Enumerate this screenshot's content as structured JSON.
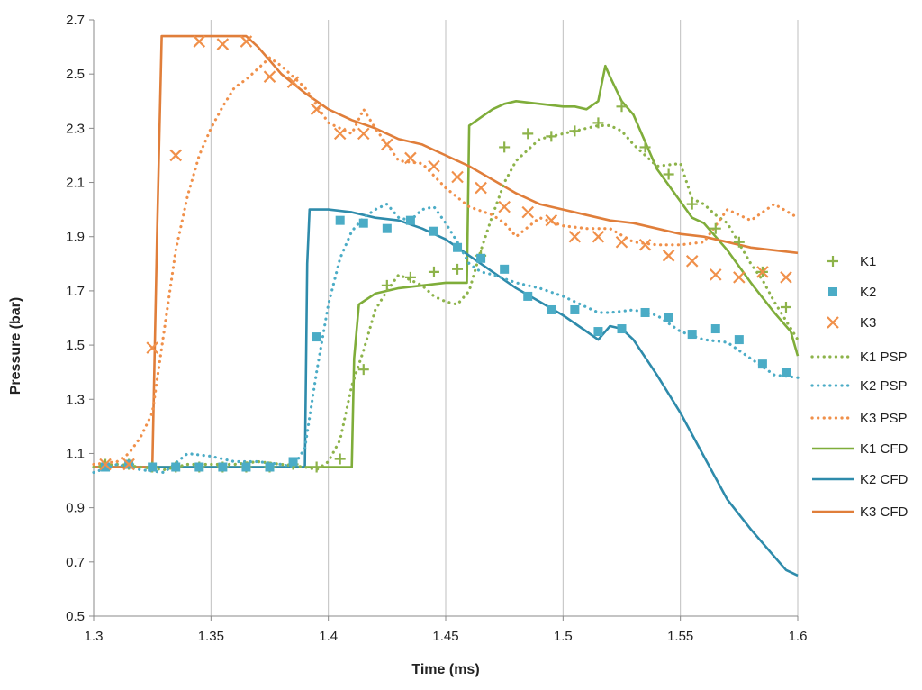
{
  "chart_data": {
    "type": "line",
    "xlabel": "Time (ms)",
    "ylabel": "Pressure (bar)",
    "xlim": [
      1.3,
      1.6
    ],
    "ylim": [
      0.5,
      2.7
    ],
    "x_ticks": [
      "1.3",
      "1.35",
      "1.4",
      "1.45",
      "1.5",
      "1.55",
      "1.6"
    ],
    "y_ticks": [
      "0.5",
      "0.7",
      "0.9",
      "1.1",
      "1.3",
      "1.5",
      "1.7",
      "1.9",
      "2.1",
      "2.3",
      "2.5",
      "2.7"
    ],
    "grid": "vertical",
    "legend_position": "right",
    "series": [
      {
        "name": "K1",
        "style": "marker",
        "marker": "plus",
        "color": "#8db34a",
        "x": [
          1.305,
          1.315,
          1.325,
          1.335,
          1.345,
          1.355,
          1.365,
          1.375,
          1.385,
          1.395,
          1.405,
          1.415,
          1.425,
          1.435,
          1.445,
          1.455,
          1.465,
          1.475,
          1.485,
          1.495,
          1.505,
          1.515,
          1.525,
          1.535,
          1.545,
          1.555,
          1.565,
          1.575,
          1.585,
          1.595
        ],
        "y": [
          1.06,
          1.06,
          1.05,
          1.05,
          1.05,
          1.05,
          1.05,
          1.05,
          1.06,
          1.05,
          1.08,
          1.41,
          1.72,
          1.75,
          1.77,
          1.78,
          1.83,
          2.23,
          2.28,
          2.27,
          2.29,
          2.32,
          2.38,
          2.23,
          2.13,
          2.02,
          1.93,
          1.88,
          1.77,
          1.64
        ]
      },
      {
        "name": "K2",
        "style": "marker",
        "marker": "square",
        "color": "#4bacc6",
        "x": [
          1.305,
          1.315,
          1.325,
          1.335,
          1.345,
          1.355,
          1.365,
          1.375,
          1.385,
          1.395,
          1.405,
          1.415,
          1.425,
          1.435,
          1.445,
          1.455,
          1.465,
          1.475,
          1.485,
          1.495,
          1.505,
          1.515,
          1.525,
          1.535,
          1.545,
          1.555,
          1.565,
          1.575,
          1.585,
          1.595
        ],
        "y": [
          1.05,
          1.06,
          1.05,
          1.05,
          1.05,
          1.05,
          1.05,
          1.05,
          1.07,
          1.53,
          1.96,
          1.95,
          1.93,
          1.96,
          1.92,
          1.86,
          1.82,
          1.78,
          1.68,
          1.63,
          1.63,
          1.55,
          1.56,
          1.62,
          1.6,
          1.54,
          1.56,
          1.52,
          1.43,
          1.4
        ]
      },
      {
        "name": "K3",
        "style": "marker",
        "marker": "x",
        "color": "#f0904a",
        "x": [
          1.305,
          1.315,
          1.325,
          1.335,
          1.345,
          1.355,
          1.365,
          1.375,
          1.385,
          1.395,
          1.405,
          1.415,
          1.425,
          1.435,
          1.445,
          1.455,
          1.465,
          1.475,
          1.485,
          1.495,
          1.505,
          1.515,
          1.525,
          1.535,
          1.545,
          1.555,
          1.565,
          1.575,
          1.585,
          1.595
        ],
        "y": [
          1.06,
          1.06,
          1.49,
          2.2,
          2.62,
          2.61,
          2.62,
          2.49,
          2.47,
          2.37,
          2.28,
          2.28,
          2.24,
          2.19,
          2.16,
          2.12,
          2.08,
          2.01,
          1.99,
          1.96,
          1.9,
          1.9,
          1.88,
          1.87,
          1.83,
          1.81,
          1.76,
          1.75,
          1.77,
          1.75
        ]
      },
      {
        "name": "K1 PSP",
        "style": "dotted",
        "color": "#8db34a",
        "x": [
          1.3,
          1.31,
          1.32,
          1.33,
          1.34,
          1.35,
          1.36,
          1.37,
          1.38,
          1.39,
          1.395,
          1.4,
          1.405,
          1.41,
          1.415,
          1.42,
          1.425,
          1.43,
          1.44,
          1.445,
          1.45,
          1.455,
          1.46,
          1.465,
          1.47,
          1.475,
          1.48,
          1.485,
          1.49,
          1.5,
          1.51,
          1.515,
          1.52,
          1.525,
          1.53,
          1.54,
          1.55,
          1.555,
          1.56,
          1.565,
          1.57,
          1.58,
          1.585,
          1.59,
          1.6
        ],
        "y": [
          1.05,
          1.06,
          1.05,
          1.04,
          1.06,
          1.06,
          1.06,
          1.07,
          1.06,
          1.05,
          1.04,
          1.07,
          1.15,
          1.35,
          1.48,
          1.63,
          1.7,
          1.76,
          1.72,
          1.68,
          1.66,
          1.65,
          1.7,
          1.85,
          1.98,
          2.1,
          2.18,
          2.22,
          2.26,
          2.28,
          2.3,
          2.31,
          2.31,
          2.29,
          2.24,
          2.16,
          2.17,
          2.04,
          2.02,
          1.98,
          1.95,
          1.8,
          1.74,
          1.66,
          1.52
        ]
      },
      {
        "name": "K2 PSP",
        "style": "dotted",
        "color": "#4bacc6",
        "x": [
          1.3,
          1.31,
          1.32,
          1.33,
          1.34,
          1.35,
          1.36,
          1.37,
          1.38,
          1.385,
          1.39,
          1.395,
          1.4,
          1.405,
          1.41,
          1.415,
          1.42,
          1.425,
          1.43,
          1.435,
          1.44,
          1.445,
          1.45,
          1.455,
          1.46,
          1.465,
          1.47,
          1.48,
          1.49,
          1.5,
          1.51,
          1.515,
          1.52,
          1.53,
          1.54,
          1.55,
          1.56,
          1.57,
          1.58,
          1.59,
          1.6
        ],
        "y": [
          1.03,
          1.06,
          1.04,
          1.03,
          1.1,
          1.09,
          1.07,
          1.07,
          1.06,
          1.05,
          1.12,
          1.4,
          1.65,
          1.82,
          1.92,
          1.97,
          2.0,
          2.02,
          1.97,
          1.96,
          2.0,
          2.01,
          1.95,
          1.88,
          1.8,
          1.77,
          1.76,
          1.73,
          1.71,
          1.68,
          1.64,
          1.62,
          1.62,
          1.63,
          1.61,
          1.55,
          1.52,
          1.51,
          1.45,
          1.39,
          1.38
        ]
      },
      {
        "name": "K3 PSP",
        "style": "dotted",
        "color": "#f0904a",
        "x": [
          1.3,
          1.31,
          1.315,
          1.32,
          1.325,
          1.33,
          1.335,
          1.34,
          1.345,
          1.35,
          1.355,
          1.36,
          1.365,
          1.37,
          1.375,
          1.38,
          1.39,
          1.4,
          1.41,
          1.415,
          1.42,
          1.43,
          1.44,
          1.45,
          1.46,
          1.47,
          1.475,
          1.48,
          1.49,
          1.5,
          1.51,
          1.52,
          1.53,
          1.54,
          1.55,
          1.56,
          1.57,
          1.58,
          1.59,
          1.6
        ],
        "y": [
          1.06,
          1.07,
          1.1,
          1.16,
          1.25,
          1.55,
          1.85,
          2.05,
          2.2,
          2.3,
          2.38,
          2.45,
          2.48,
          2.52,
          2.56,
          2.53,
          2.45,
          2.32,
          2.28,
          2.37,
          2.3,
          2.18,
          2.17,
          2.08,
          2.01,
          1.98,
          1.95,
          1.9,
          1.97,
          1.94,
          1.93,
          1.93,
          1.88,
          1.87,
          1.87,
          1.88,
          2.0,
          1.96,
          2.02,
          1.97
        ]
      },
      {
        "name": "K1 CFD",
        "style": "solid",
        "color": "#7fad3a",
        "x": [
          1.3,
          1.41,
          1.411,
          1.413,
          1.42,
          1.43,
          1.44,
          1.45,
          1.458,
          1.459,
          1.46,
          1.465,
          1.47,
          1.475,
          1.48,
          1.49,
          1.5,
          1.505,
          1.51,
          1.515,
          1.518,
          1.52,
          1.525,
          1.53,
          1.54,
          1.55,
          1.555,
          1.56,
          1.565,
          1.57,
          1.58,
          1.59,
          1.597,
          1.6
        ],
        "y": [
          1.05,
          1.05,
          1.45,
          1.65,
          1.69,
          1.71,
          1.72,
          1.73,
          1.73,
          1.73,
          2.31,
          2.34,
          2.37,
          2.39,
          2.4,
          2.39,
          2.38,
          2.38,
          2.37,
          2.4,
          2.53,
          2.49,
          2.4,
          2.35,
          2.15,
          2.03,
          1.97,
          1.95,
          1.9,
          1.85,
          1.73,
          1.62,
          1.55,
          1.46
        ]
      },
      {
        "name": "K2 CFD",
        "style": "solid",
        "color": "#2e8bab",
        "x": [
          1.3,
          1.39,
          1.391,
          1.392,
          1.4,
          1.41,
          1.42,
          1.43,
          1.44,
          1.45,
          1.46,
          1.47,
          1.48,
          1.49,
          1.5,
          1.505,
          1.51,
          1.515,
          1.52,
          1.525,
          1.53,
          1.54,
          1.55,
          1.56,
          1.57,
          1.58,
          1.59,
          1.595,
          1.6
        ],
        "y": [
          1.05,
          1.05,
          1.8,
          2.0,
          2.0,
          1.99,
          1.97,
          1.96,
          1.93,
          1.89,
          1.83,
          1.77,
          1.71,
          1.66,
          1.61,
          1.58,
          1.55,
          1.52,
          1.57,
          1.56,
          1.52,
          1.39,
          1.25,
          1.09,
          0.93,
          0.82,
          0.72,
          0.67,
          0.65
        ]
      },
      {
        "name": "K3 CFD",
        "style": "solid",
        "color": "#e07e3a",
        "x": [
          1.3,
          1.325,
          1.327,
          1.329,
          1.34,
          1.35,
          1.36,
          1.365,
          1.37,
          1.375,
          1.38,
          1.39,
          1.4,
          1.41,
          1.42,
          1.43,
          1.44,
          1.45,
          1.46,
          1.47,
          1.48,
          1.49,
          1.5,
          1.51,
          1.52,
          1.53,
          1.54,
          1.55,
          1.56,
          1.57,
          1.58,
          1.59,
          1.6
        ],
        "y": [
          1.05,
          1.05,
          1.9,
          2.64,
          2.64,
          2.64,
          2.64,
          2.64,
          2.6,
          2.55,
          2.5,
          2.43,
          2.37,
          2.33,
          2.3,
          2.26,
          2.24,
          2.2,
          2.16,
          2.11,
          2.06,
          2.02,
          2.0,
          1.98,
          1.96,
          1.95,
          1.93,
          1.91,
          1.9,
          1.88,
          1.86,
          1.85,
          1.84
        ]
      }
    ]
  }
}
